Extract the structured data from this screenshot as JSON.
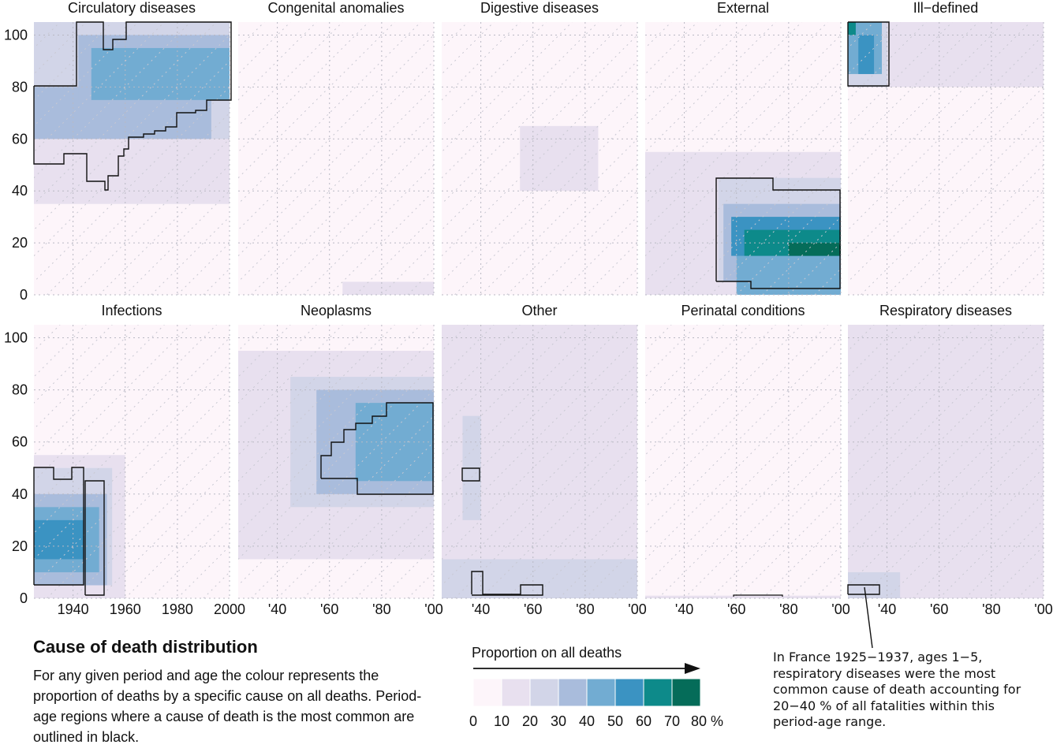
{
  "chart_data": {
    "type": "heatmap",
    "facets": [
      "Circulatory diseases",
      "Congenital anomalies",
      "Digestive diseases",
      "External",
      "Ill−defined",
      "Infections",
      "Neoplasms",
      "Other",
      "Perinatal conditions",
      "Respiratory diseases"
    ],
    "xlim": [
      1925,
      2000
    ],
    "ylim": [
      0,
      105
    ],
    "y_ticks": [
      "0",
      "20",
      "40",
      "60",
      "80",
      "100"
    ],
    "x_ticks_first": [
      "1940",
      "1960",
      "1980",
      "2000"
    ],
    "x_ticks_short": [
      "'40",
      "'60",
      "'80",
      "'00"
    ],
    "x_tick_values": [
      1940,
      1960,
      1980,
      2000
    ],
    "legend": {
      "title": "Proportion on all deaths",
      "breaks": [
        "0",
        "10",
        "20",
        "30",
        "40",
        "50",
        "60",
        "70",
        "80 %"
      ],
      "colors": [
        "#fdf5fa",
        "#e8e0ef",
        "#d2d5e8",
        "#a9bcdc",
        "#72acd2",
        "#3b93c2",
        "#0d8a8a",
        "#056c59"
      ]
    },
    "regions": [
      {
        "facet": "Circulatory diseases",
        "cells": [
          {
            "x0": 1925,
            "x1": 2000,
            "y0": 35,
            "y1": 105,
            "level": 1
          },
          {
            "x0": 1925,
            "x1": 2000,
            "y0": 60,
            "y1": 105,
            "level": 2
          },
          {
            "x0": 1925,
            "x1": 1993,
            "y0": 60,
            "y1": 80,
            "level": 3
          },
          {
            "x0": 1942,
            "x1": 2000,
            "y0": 75,
            "y1": 100,
            "level": 3
          },
          {
            "x0": 1947,
            "x1": 2000,
            "y0": 75,
            "y1": 95,
            "level": 4
          }
        ]
      },
      {
        "facet": "Congenital anomalies",
        "cells": [
          {
            "x0": 1965,
            "x1": 2000,
            "y0": 0,
            "y1": 5,
            "level": 1
          }
        ]
      },
      {
        "facet": "Digestive diseases",
        "cells": [
          {
            "x0": 1955,
            "x1": 1985,
            "y0": 40,
            "y1": 65,
            "level": 1
          }
        ]
      },
      {
        "facet": "External",
        "cells": [
          {
            "x0": 1925,
            "x1": 2000,
            "y0": 0,
            "y1": 55,
            "level": 1
          },
          {
            "x0": 1953,
            "x1": 2000,
            "y0": 5,
            "y1": 45,
            "level": 2
          },
          {
            "x0": 1955,
            "x1": 2000,
            "y0": 5,
            "y1": 35,
            "level": 3
          },
          {
            "x0": 1960,
            "x1": 2000,
            "y0": 0,
            "y1": 30,
            "level": 4
          },
          {
            "x0": 1958,
            "x1": 2000,
            "y0": 15,
            "y1": 30,
            "level": 5
          },
          {
            "x0": 1963,
            "x1": 2000,
            "y0": 15,
            "y1": 25,
            "level": 6
          },
          {
            "x0": 1980,
            "x1": 2000,
            "y0": 15,
            "y1": 20,
            "level": 7
          }
        ]
      },
      {
        "facet": "Ill−defined",
        "cells": [
          {
            "x0": 1925,
            "x1": 2000,
            "y0": 80,
            "y1": 105,
            "level": 1
          },
          {
            "x0": 1925,
            "x1": 1940,
            "y0": 80,
            "y1": 105,
            "level": 2
          },
          {
            "x0": 1925,
            "x1": 1938,
            "y0": 85,
            "y1": 105,
            "level": 4
          },
          {
            "x0": 1929,
            "x1": 1935,
            "y0": 85,
            "y1": 100,
            "level": 5
          },
          {
            "x0": 1925,
            "x1": 1928,
            "y0": 100,
            "y1": 105,
            "level": 6
          }
        ]
      },
      {
        "facet": "Infections",
        "cells": [
          {
            "x0": 1925,
            "x1": 1960,
            "y0": 0,
            "y1": 55,
            "level": 1
          },
          {
            "x0": 1925,
            "x1": 1955,
            "y0": 5,
            "y1": 50,
            "level": 2
          },
          {
            "x0": 1925,
            "x1": 1953,
            "y0": 5,
            "y1": 40,
            "level": 3
          },
          {
            "x0": 1925,
            "x1": 1950,
            "y0": 10,
            "y1": 35,
            "level": 4
          },
          {
            "x0": 1925,
            "x1": 1944,
            "y0": 15,
            "y1": 30,
            "level": 5
          }
        ]
      },
      {
        "facet": "Neoplasms",
        "cells": [
          {
            "x0": 1925,
            "x1": 2000,
            "y0": 15,
            "y1": 95,
            "level": 1
          },
          {
            "x0": 1945,
            "x1": 2000,
            "y0": 35,
            "y1": 85,
            "level": 2
          },
          {
            "x0": 1955,
            "x1": 2000,
            "y0": 40,
            "y1": 80,
            "level": 3
          },
          {
            "x0": 1970,
            "x1": 2000,
            "y0": 45,
            "y1": 75,
            "level": 4
          }
        ]
      },
      {
        "facet": "Other",
        "cells": [
          {
            "x0": 1925,
            "x1": 2000,
            "y0": 0,
            "y1": 105,
            "level": 1
          },
          {
            "x0": 1925,
            "x1": 2000,
            "y0": 0,
            "y1": 15,
            "level": 2
          },
          {
            "x0": 1933,
            "x1": 1940,
            "y0": 30,
            "y1": 70,
            "level": 2
          }
        ]
      },
      {
        "facet": "Perinatal conditions",
        "cells": [
          {
            "x0": 1925,
            "x1": 2000,
            "y0": 0,
            "y1": 1,
            "level": 1
          }
        ]
      },
      {
        "facet": "Respiratory diseases",
        "cells": [
          {
            "x0": 1925,
            "x1": 2000,
            "y0": 0,
            "y1": 105,
            "level": 1
          },
          {
            "x0": 1925,
            "x1": 1945,
            "y0": 0,
            "y1": 10,
            "level": 2
          }
        ]
      }
    ]
  },
  "caption": {
    "title": "Cause of death distribution",
    "body": "For any given period and age the colour represents the proportion of deaths by a specific cause on all deaths. Period-age regions where a cause of death is the most common are outlined in black."
  },
  "annotation": {
    "text": "In France 1925−1937, ages 1−5, respiratory diseases were the most common cause of death accounting for 20−40 % of all fatalities within this period-age range."
  }
}
